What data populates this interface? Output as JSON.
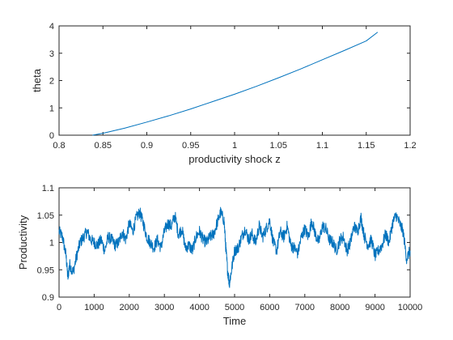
{
  "colors": {
    "series": "#0072BD",
    "axis": "#262626",
    "background": "#ffffff"
  },
  "chart_data": [
    {
      "type": "line",
      "title": "",
      "xlabel": "productivity shock z",
      "ylabel": "theta",
      "xlim": [
        0.8,
        1.2
      ],
      "ylim": [
        0,
        4
      ],
      "xticks": [
        0.8,
        0.85,
        0.9,
        0.95,
        1,
        1.05,
        1.1,
        1.15,
        1.2
      ],
      "xtick_labels": [
        "0.8",
        "0.85",
        "0.9",
        "0.95",
        "1",
        "1.05",
        "1.1",
        "1.15",
        "1.2"
      ],
      "yticks": [
        0,
        1,
        2,
        3,
        4
      ],
      "ytick_labels": [
        "0",
        "1",
        "2",
        "3",
        "4"
      ],
      "grid": false,
      "series": [
        {
          "x": [
            0.838,
            0.85,
            0.875,
            0.9,
            0.925,
            0.95,
            0.975,
            1.0,
            1.025,
            1.05,
            1.075,
            1.1,
            1.125,
            1.15,
            1.163
          ],
          "y": [
            0.0,
            0.07,
            0.26,
            0.48,
            0.71,
            0.96,
            1.23,
            1.5,
            1.79,
            2.1,
            2.42,
            2.76,
            3.1,
            3.45,
            3.77
          ]
        }
      ]
    },
    {
      "type": "line",
      "title": "",
      "xlabel": "Time",
      "ylabel": "Productivity",
      "xlim": [
        0,
        10000
      ],
      "ylim": [
        0.9,
        1.1
      ],
      "xticks": [
        0,
        1000,
        2000,
        3000,
        4000,
        5000,
        6000,
        7000,
        8000,
        9000,
        10000
      ],
      "xtick_labels": [
        "0",
        "1000",
        "2000",
        "3000",
        "4000",
        "5000",
        "6000",
        "7000",
        "8000",
        "9000",
        "10000"
      ],
      "yticks": [
        0.9,
        0.95,
        1,
        1.05,
        1.1
      ],
      "ytick_labels": [
        "0.9",
        "0.95",
        "1",
        "1.05",
        "1.1"
      ],
      "grid": false,
      "series": [
        {
          "x": [
            0,
            100,
            200,
            250,
            300,
            400,
            500,
            600,
            700,
            800,
            900,
            1000,
            1100,
            1200,
            1300,
            1400,
            1500,
            1600,
            1700,
            1800,
            1900,
            2000,
            2100,
            2200,
            2300,
            2400,
            2500,
            2600,
            2700,
            2800,
            2900,
            3000,
            3100,
            3200,
            3300,
            3400,
            3500,
            3600,
            3700,
            3800,
            3900,
            4000,
            4100,
            4200,
            4300,
            4400,
            4500,
            4600,
            4700,
            4750,
            4800,
            4850,
            4900,
            5000,
            5100,
            5200,
            5300,
            5400,
            5500,
            5600,
            5700,
            5800,
            5900,
            6000,
            6100,
            6200,
            6300,
            6400,
            6500,
            6600,
            6700,
            6800,
            6900,
            7000,
            7100,
            7200,
            7300,
            7400,
            7500,
            7600,
            7700,
            7800,
            7900,
            8000,
            8100,
            8200,
            8300,
            8400,
            8500,
            8600,
            8700,
            8800,
            8900,
            9000,
            9100,
            9200,
            9300,
            9400,
            9500,
            9600,
            9700,
            9800,
            9900,
            10000
          ],
          "y": [
            1.02,
            1.01,
            0.975,
            0.935,
            0.96,
            0.945,
            0.975,
            1.0,
            1.01,
            1.02,
            1.005,
            1.0,
            0.995,
            1.005,
            0.985,
            1.01,
            1.005,
            0.995,
            1.0,
            1.02,
            1.005,
            1.035,
            1.02,
            1.045,
            1.055,
            1.035,
            1.01,
            1.0,
            0.99,
            1.005,
            0.99,
            1.02,
            1.035,
            1.03,
            1.05,
            1.015,
            1.025,
            0.99,
            0.995,
            0.985,
            1.01,
            1.02,
            1.005,
            1.0,
            1.01,
            1.015,
            1.035,
            1.055,
            1.04,
            0.99,
            0.95,
            0.925,
            0.945,
            0.985,
            0.99,
            1.01,
            1.025,
            1.005,
            1.015,
            1.0,
            1.03,
            1.01,
            1.025,
            1.04,
            1.0,
            0.985,
            1.02,
            1.01,
            1.03,
            0.995,
            0.99,
            0.98,
            1.01,
            1.025,
            1.01,
            1.04,
            1.015,
            1.0,
            1.03,
            1.025,
            1.005,
            1.0,
            0.985,
            1.005,
            1.01,
            0.985,
            1.0,
            1.03,
            1.02,
            1.045,
            1.01,
            0.995,
            1.005,
            0.975,
            0.985,
            0.995,
            1.015,
            1.0,
            1.035,
            1.05,
            1.035,
            1.02,
            0.97,
            0.985
          ]
        }
      ]
    }
  ]
}
